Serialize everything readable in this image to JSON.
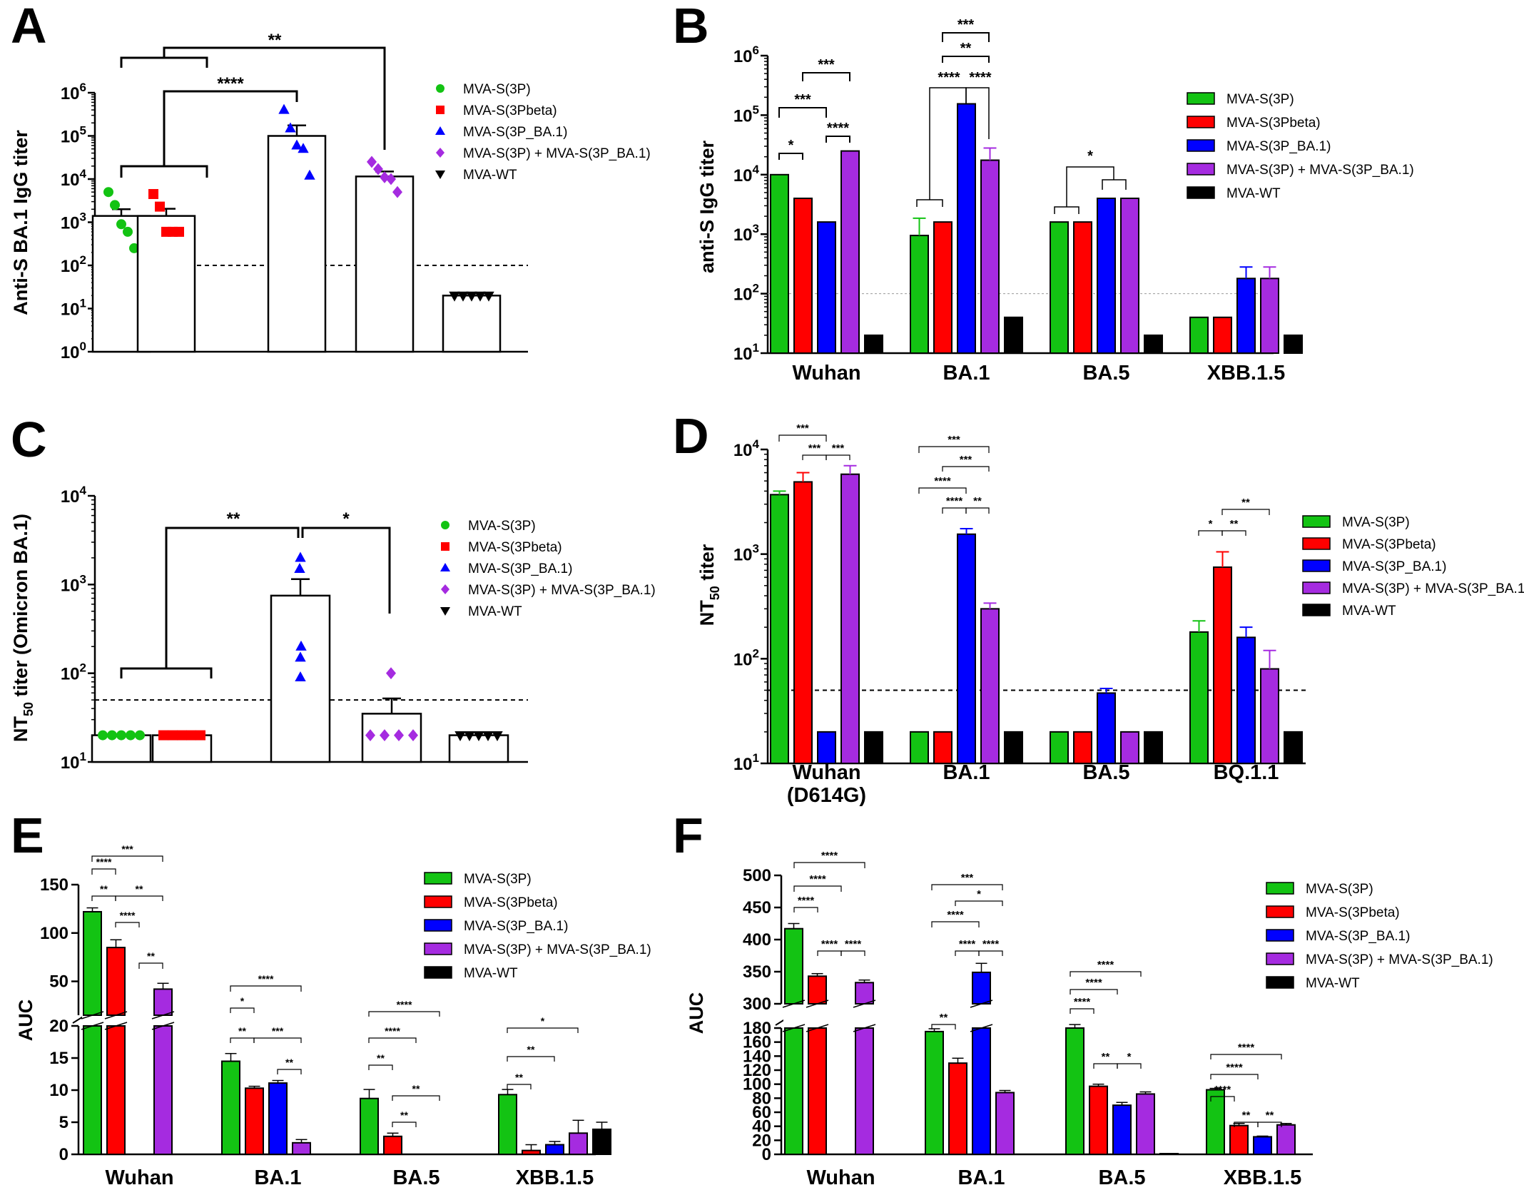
{
  "colors": {
    "MVA-S(3P)": "#13c313",
    "MVA-S(3Pbeta)": "#ff0000",
    "MVA-S(3P_BA.1)": "#0000ff",
    "MVA-S(3P) + MVA-S(3P_BA.1)": "#a52be0",
    "MVA-WT": "#000000"
  },
  "chart_data": [
    {
      "panel": "A",
      "type": "bar",
      "title": "",
      "ylabel": "Anti-S BA.1 IgG titer",
      "yscale": "log",
      "ylim": [
        1,
        1000000
      ],
      "yticks_exp": [
        0,
        1,
        2,
        3,
        4,
        5,
        6
      ],
      "threshold": 100,
      "categories": [
        "MVA-S(3P)",
        "MVA-S(3Pbeta)",
        "MVA-S(3P_BA.1)",
        "MVA-S(3P) + MVA-S(3P_BA.1)",
        "MVA-WT"
      ],
      "values": [
        1400,
        1400,
        100000,
        11500,
        20
      ],
      "errors": [
        2000,
        2050,
        175000,
        15000,
        null
      ],
      "points": [
        [
          5000,
          2500,
          900,
          600,
          250
        ],
        [
          4500,
          2300,
          600,
          600,
          600
        ],
        [
          400000,
          150000,
          60000,
          50000,
          12000
        ],
        [
          25000,
          17000,
          11000,
          10000,
          5000
        ],
        [
          20,
          20,
          20,
          20,
          20
        ]
      ],
      "markers": [
        "circle",
        "square",
        "triangle",
        "diamond",
        "tri-down"
      ],
      "legend": [
        "MVA-S(3P)",
        "MVA-S(3Pbeta)",
        "MVA-S(3P_BA.1)",
        "MVA-S(3P) + MVA-S(3P_BA.1)",
        "MVA-WT"
      ],
      "significance": [
        "**",
        "****"
      ]
    },
    {
      "panel": "B",
      "type": "bar",
      "ylabel": "anti-S IgG titer",
      "yscale": "log",
      "ylim": [
        10,
        1000000
      ],
      "yticks_exp": [
        1,
        2,
        3,
        4,
        5,
        6
      ],
      "threshold": 100,
      "categories": [
        "Wuhan",
        "BA.1",
        "BA.5",
        "XBB.1.5"
      ],
      "series": [
        {
          "name": "MVA-S(3P)",
          "values": [
            10000,
            950,
            1600,
            40
          ]
        },
        {
          "name": "MVA-S(3Pbeta)",
          "values": [
            4000,
            1600,
            1600,
            40
          ]
        },
        {
          "name": "MVA-S(3P_BA.1)",
          "values": [
            1600,
            155000,
            4000,
            180
          ]
        },
        {
          "name": "MVA-S(3P) + MVA-S(3P_BA.1)",
          "values": [
            25000,
            17500,
            4000,
            180
          ]
        },
        {
          "name": "MVA-WT",
          "values": [
            20,
            40,
            20,
            20
          ]
        }
      ],
      "legend": [
        "MVA-S(3P)",
        "MVA-S(3Pbeta)",
        "MVA-S(3P_BA.1)",
        "MVA-S(3P) + MVA-S(3P_BA.1)",
        "MVA-WT"
      ],
      "significance": [
        "*",
        "***",
        "***",
        "****",
        "***",
        "**",
        "****",
        "****",
        "*"
      ]
    },
    {
      "panel": "C",
      "type": "bar",
      "ylabel": "NT50 titer (Omicron BA.1)",
      "ylabel_main": "NT",
      "ylabel_sub": "50",
      "ylabel_rest": " titer (Omicron BA.1)",
      "yscale": "log",
      "ylim": [
        10,
        10000
      ],
      "yticks_exp": [
        1,
        2,
        3,
        4
      ],
      "threshold": 50,
      "categories": [
        "MVA-S(3P)",
        "MVA-S(3Pbeta)",
        "MVA-S(3P_BA.1)",
        "MVA-S(3P) + MVA-S(3P_BA.1)",
        "MVA-WT"
      ],
      "values": [
        20,
        20,
        750,
        35,
        20
      ],
      "errors": [
        null,
        null,
        1150,
        52,
        null
      ],
      "points": [
        [
          20,
          20,
          20,
          20,
          20
        ],
        [
          20,
          20,
          20,
          20,
          20
        ],
        [
          2000,
          1500,
          200,
          150,
          90
        ],
        [
          100,
          20,
          20,
          20,
          20
        ],
        [
          20,
          20,
          20,
          20,
          20
        ]
      ],
      "markers": [
        "circle",
        "square",
        "triangle",
        "diamond",
        "tri-down"
      ],
      "legend": [
        "MVA-S(3P)",
        "MVA-S(3Pbeta)",
        "MVA-S(3P_BA.1)",
        "MVA-S(3P) + MVA-S(3P_BA.1)",
        "MVA-WT"
      ],
      "significance": [
        "**",
        "*"
      ]
    },
    {
      "panel": "D",
      "type": "bar",
      "ylabel": "NT50 titer",
      "ylabel_main": "NT",
      "ylabel_sub": "50",
      "ylabel_rest": " titer",
      "yscale": "log",
      "ylim": [
        10,
        10000
      ],
      "yticks_exp": [
        1,
        2,
        3,
        4
      ],
      "threshold": 50,
      "categories": [
        "Wuhan",
        "BA.1",
        "BA.5",
        "BQ.1.1"
      ],
      "category_sublabels": [
        "(D614G)",
        "",
        "",
        ""
      ],
      "series": [
        {
          "name": "MVA-S(3P)",
          "values": [
            3700,
            20,
            20,
            180
          ]
        },
        {
          "name": "MVA-S(3Pbeta)",
          "values": [
            4900,
            20,
            20,
            750
          ]
        },
        {
          "name": "MVA-S(3P_BA.1)",
          "values": [
            20,
            1550,
            47,
            160
          ]
        },
        {
          "name": "MVA-S(3P) + MVA-S(3P_BA.1)",
          "values": [
            5800,
            300,
            20,
            80
          ]
        },
        {
          "name": "MVA-WT",
          "values": [
            20,
            20,
            20,
            20
          ]
        }
      ],
      "legend": [
        "MVA-S(3P)",
        "MVA-S(3Pbeta)",
        "MVA-S(3P_BA.1)",
        "MVA-S(3P) + MVA-S(3P_BA.1)",
        "MVA-WT"
      ],
      "significance": [
        "***",
        "***",
        "***",
        "***",
        "***",
        "****",
        "****",
        "**",
        "*",
        "**",
        "**"
      ]
    },
    {
      "panel": "E",
      "type": "bar",
      "ylabel": "AUC",
      "broken_axis": true,
      "yticks_lower": [
        0,
        5,
        10,
        15,
        20
      ],
      "yticks_upper": [
        50,
        100,
        150
      ],
      "categories": [
        "Wuhan",
        "BA.1",
        "BA.5",
        "XBB.1.5"
      ],
      "series": [
        {
          "name": "MVA-S(3P)",
          "values": [
            122,
            14.5,
            8.7,
            9.3
          ]
        },
        {
          "name": "MVA-S(3Pbeta)",
          "values": [
            85,
            10.3,
            2.8,
            0.6
          ]
        },
        {
          "name": "MVA-S(3P_BA.1)",
          "values": [
            0,
            11.1,
            0,
            1.5
          ]
        },
        {
          "name": "MVA-S(3P) + MVA-S(3P_BA.1)",
          "values": [
            42,
            1.8,
            0,
            3.3
          ]
        },
        {
          "name": "MVA-WT",
          "values": [
            0,
            0,
            0,
            3.9
          ]
        }
      ],
      "legend": [
        "MVA-S(3P)",
        "MVA-S(3Pbeta)",
        "MVA-S(3P_BA.1)",
        "MVA-S(3P) + MVA-S(3P_BA.1)",
        "MVA-WT"
      ],
      "significance": [
        "***",
        "****",
        "**",
        "**",
        "****",
        "**",
        "****",
        "*",
        "**",
        "***",
        "**",
        "****",
        "****",
        "**",
        "**",
        "**",
        "*",
        "**",
        "**"
      ]
    },
    {
      "panel": "F",
      "type": "bar",
      "ylabel": "AUC",
      "broken_axis": true,
      "yticks_lower": [
        0,
        20,
        40,
        60,
        80,
        100,
        120,
        140,
        160,
        180
      ],
      "yticks_upper": [
        300,
        350,
        400,
        450,
        500
      ],
      "categories": [
        "Wuhan",
        "BA.1",
        "BA.5",
        "XBB.1.5"
      ],
      "series": [
        {
          "name": "MVA-S(3P)",
          "values": [
            417,
            175,
            180,
            92
          ]
        },
        {
          "name": "MVA-S(3Pbeta)",
          "values": [
            343,
            130,
            97,
            41
          ]
        },
        {
          "name": "MVA-S(3P_BA.1)",
          "values": [
            0,
            349,
            70,
            25
          ]
        },
        {
          "name": "MVA-S(3P) + MVA-S(3P_BA.1)",
          "values": [
            333,
            88,
            86,
            42
          ]
        },
        {
          "name": "MVA-WT",
          "values": [
            0,
            0,
            1,
            0
          ]
        }
      ],
      "legend": [
        "MVA-S(3P)",
        "MVA-S(3Pbeta)",
        "MVA-S(3P_BA.1)",
        "MVA-S(3P) + MVA-S(3P_BA.1)",
        "MVA-WT"
      ],
      "significance": [
        "****",
        "****",
        "****",
        "****",
        "****",
        "***",
        "*",
        "****",
        "**",
        "****",
        "****",
        "****",
        "****",
        "****",
        "**",
        "*",
        "****",
        "****",
        "****",
        "**",
        "**"
      ]
    }
  ]
}
